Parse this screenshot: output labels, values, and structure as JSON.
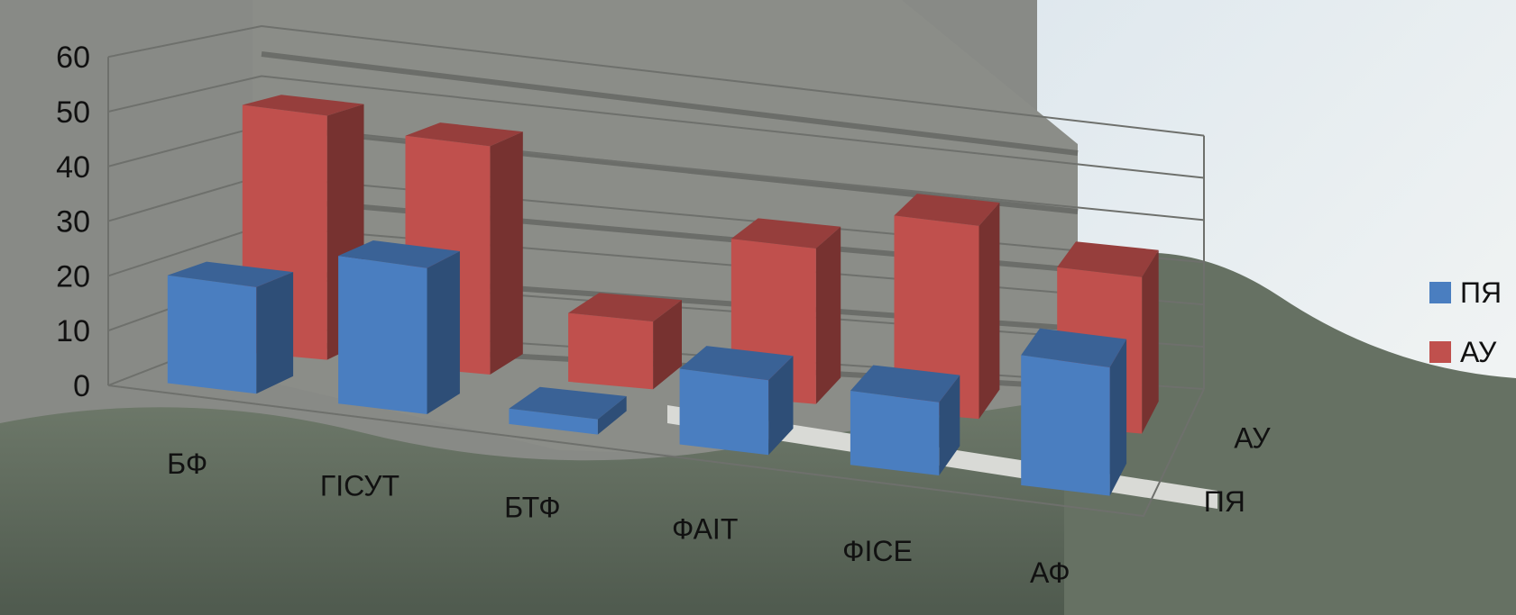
{
  "colors": {
    "series_front": "#4a7ec0",
    "series_back": "#c0504d",
    "grid": "#6e706c"
  },
  "chart_data": {
    "type": "bar",
    "variant": "3d-column",
    "categories": [
      "БФ",
      "ГІСУТ",
      "БТФ",
      "ФАІТ",
      "ФІСЕ",
      "АФ"
    ],
    "series": [
      {
        "name": "ПЯ",
        "values": [
          20,
          28,
          3,
          15,
          15,
          27
        ],
        "color": "#4a7ec0"
      },
      {
        "name": "АУ",
        "values": [
          48,
          46,
          14,
          33,
          42,
          35
        ],
        "color": "#c0504d"
      }
    ],
    "depth_labels": [
      "ПЯ",
      "АУ"
    ],
    "ylim": [
      0,
      60
    ],
    "yticks": [
      0,
      10,
      20,
      30,
      40,
      50,
      60
    ],
    "grid": true,
    "legend": "right"
  }
}
